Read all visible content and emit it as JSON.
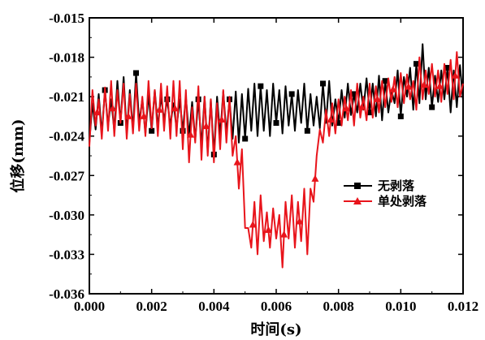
{
  "chart_data": {
    "type": "line",
    "title": "",
    "xlabel": "时间(s)",
    "ylabel": "位移(mm)",
    "xlim": [
      0.0,
      0.012
    ],
    "ylim": [
      -0.036,
      -0.015
    ],
    "xticks": [
      0.0,
      0.002,
      0.004,
      0.006,
      0.008,
      0.01,
      0.012
    ],
    "xtick_labels": [
      "0.000",
      "0.002",
      "0.004",
      "0.006",
      "0.008",
      "0.010",
      "0.012"
    ],
    "yticks": [
      -0.015,
      -0.018,
      -0.021,
      -0.024,
      -0.027,
      -0.03,
      -0.033,
      -0.036
    ],
    "ytick_labels": [
      "-0.015",
      "-0.018",
      "-0.021",
      "-0.024",
      "-0.027",
      "-0.030",
      "-0.033",
      "-0.036"
    ],
    "grid": false,
    "legend_position": "right",
    "series": [
      {
        "name": "无剥落",
        "color": "#000000",
        "marker": "square",
        "x": [
          0.0,
          0.0001,
          0.0002,
          0.0003,
          0.0004,
          0.0005,
          0.0006,
          0.0007,
          0.0008,
          0.0009,
          0.001,
          0.0011,
          0.0012,
          0.0013,
          0.0014,
          0.0015,
          0.0016,
          0.0017,
          0.0018,
          0.0019,
          0.002,
          0.0021,
          0.0022,
          0.0023,
          0.0024,
          0.0025,
          0.0026,
          0.0027,
          0.0028,
          0.0029,
          0.003,
          0.0031,
          0.0032,
          0.0033,
          0.0034,
          0.0035,
          0.0036,
          0.0037,
          0.0038,
          0.0039,
          0.004,
          0.0041,
          0.0042,
          0.0043,
          0.0044,
          0.0045,
          0.0046,
          0.0047,
          0.0048,
          0.0049,
          0.005,
          0.0051,
          0.0052,
          0.0053,
          0.0054,
          0.0055,
          0.0056,
          0.0057,
          0.0058,
          0.0059,
          0.006,
          0.0061,
          0.0062,
          0.0063,
          0.0064,
          0.0065,
          0.0066,
          0.0067,
          0.0068,
          0.0069,
          0.007,
          0.0071,
          0.0072,
          0.0073,
          0.0074,
          0.0075,
          0.0076,
          0.0077,
          0.0078,
          0.0079,
          0.008,
          0.0081,
          0.0082,
          0.0083,
          0.0084,
          0.0085,
          0.0086,
          0.0087,
          0.0088,
          0.0089,
          0.009,
          0.0091,
          0.0092,
          0.0093,
          0.0094,
          0.0095,
          0.0096,
          0.0097,
          0.0098,
          0.0099,
          0.01,
          0.0101,
          0.0102,
          0.0103,
          0.0104,
          0.0105,
          0.0106,
          0.0107,
          0.0108,
          0.0109,
          0.011,
          0.0111,
          0.0112,
          0.0113,
          0.0114,
          0.0115,
          0.0116,
          0.0117,
          0.0118,
          0.0119,
          0.012
        ],
        "y": [
          -0.0245,
          -0.0215,
          -0.0235,
          -0.0208,
          -0.0238,
          -0.0205,
          -0.0232,
          -0.0212,
          -0.0236,
          -0.0198,
          -0.023,
          -0.0195,
          -0.0238,
          -0.0205,
          -0.0235,
          -0.0192,
          -0.023,
          -0.0212,
          -0.0238,
          -0.0208,
          -0.0236,
          -0.0205,
          -0.0233,
          -0.021,
          -0.0228,
          -0.0212,
          -0.0232,
          -0.0215,
          -0.0234,
          -0.0212,
          -0.0236,
          -0.021,
          -0.024,
          -0.0214,
          -0.0243,
          -0.0212,
          -0.0248,
          -0.021,
          -0.0252,
          -0.0212,
          -0.0254,
          -0.021,
          -0.024,
          -0.0206,
          -0.0238,
          -0.0212,
          -0.0242,
          -0.0206,
          -0.0245,
          -0.0208,
          -0.0242,
          -0.0204,
          -0.0236,
          -0.02,
          -0.024,
          -0.0202,
          -0.0236,
          -0.0205,
          -0.024,
          -0.02,
          -0.023,
          -0.0205,
          -0.0238,
          -0.0202,
          -0.0232,
          -0.0208,
          -0.0236,
          -0.0205,
          -0.023,
          -0.02,
          -0.0236,
          -0.0208,
          -0.0232,
          -0.021,
          -0.0234,
          -0.02,
          -0.023,
          -0.0198,
          -0.0232,
          -0.0212,
          -0.023,
          -0.0205,
          -0.0226,
          -0.02,
          -0.0224,
          -0.0208,
          -0.0222,
          -0.02,
          -0.022,
          -0.0196,
          -0.0222,
          -0.02,
          -0.0225,
          -0.0194,
          -0.0228,
          -0.0198,
          -0.0222,
          -0.0205,
          -0.0215,
          -0.019,
          -0.0225,
          -0.0195,
          -0.021,
          -0.0188,
          -0.022,
          -0.0185,
          -0.0215,
          -0.017,
          -0.0212,
          -0.0188,
          -0.0218,
          -0.0194,
          -0.0214,
          -0.019,
          -0.0212,
          -0.0188,
          -0.0222,
          -0.019,
          -0.0218,
          -0.0186,
          -0.0213
        ],
        "marker_x": [
          0.0005,
          0.001,
          0.0015,
          0.002,
          0.0025,
          0.003,
          0.0035,
          0.004,
          0.0045,
          0.005,
          0.0055,
          0.006,
          0.0065,
          0.007,
          0.0075,
          0.008,
          0.0085,
          0.009,
          0.0095,
          0.01,
          0.0105,
          0.011,
          0.0115
        ]
      },
      {
        "name": "单处剥落",
        "color": "#e8141b",
        "marker": "triangle",
        "x": [
          0.0,
          0.0001,
          0.0002,
          0.0003,
          0.0004,
          0.0005,
          0.0006,
          0.0007,
          0.0008,
          0.0009,
          0.001,
          0.0011,
          0.0012,
          0.0013,
          0.0014,
          0.0015,
          0.0016,
          0.0017,
          0.0018,
          0.0019,
          0.002,
          0.0021,
          0.0022,
          0.0023,
          0.0024,
          0.0025,
          0.0026,
          0.0027,
          0.0028,
          0.0029,
          0.003,
          0.0031,
          0.0032,
          0.0033,
          0.0034,
          0.0035,
          0.0036,
          0.0037,
          0.0038,
          0.0039,
          0.004,
          0.0041,
          0.0042,
          0.0043,
          0.0044,
          0.0045,
          0.0046,
          0.0047,
          0.0048,
          0.0049,
          0.005,
          0.0051,
          0.0052,
          0.0053,
          0.0054,
          0.0055,
          0.0056,
          0.0057,
          0.0058,
          0.0059,
          0.006,
          0.0061,
          0.0062,
          0.0063,
          0.0064,
          0.0065,
          0.0066,
          0.0067,
          0.0068,
          0.0069,
          0.007,
          0.0071,
          0.0072,
          0.0073,
          0.0074,
          0.0075,
          0.0076,
          0.0077,
          0.0078,
          0.0079,
          0.008,
          0.0081,
          0.0082,
          0.0083,
          0.0084,
          0.0085,
          0.0086,
          0.0087,
          0.0088,
          0.0089,
          0.009,
          0.0091,
          0.0092,
          0.0093,
          0.0094,
          0.0095,
          0.0096,
          0.0097,
          0.0098,
          0.0099,
          0.01,
          0.0101,
          0.0102,
          0.0103,
          0.0104,
          0.0105,
          0.0106,
          0.0107,
          0.0108,
          0.0109,
          0.011,
          0.0111,
          0.0112,
          0.0113,
          0.0114,
          0.0115,
          0.0116,
          0.0117,
          0.0118,
          0.0119,
          0.012
        ],
        "y": [
          -0.0248,
          -0.0205,
          -0.0232,
          -0.0212,
          -0.0242,
          -0.0203,
          -0.0236,
          -0.0198,
          -0.024,
          -0.0205,
          -0.023,
          -0.02,
          -0.0242,
          -0.0208,
          -0.0238,
          -0.02,
          -0.0236,
          -0.021,
          -0.024,
          -0.0198,
          -0.0234,
          -0.0205,
          -0.024,
          -0.02,
          -0.0236,
          -0.0202,
          -0.0242,
          -0.0198,
          -0.024,
          -0.0198,
          -0.025,
          -0.0205,
          -0.026,
          -0.0218,
          -0.0245,
          -0.0202,
          -0.0258,
          -0.021,
          -0.0255,
          -0.0212,
          -0.026,
          -0.0215,
          -0.025,
          -0.0205,
          -0.0245,
          -0.021,
          -0.0255,
          -0.024,
          -0.028,
          -0.025,
          -0.031,
          -0.031,
          -0.0325,
          -0.029,
          -0.033,
          -0.0285,
          -0.032,
          -0.0298,
          -0.0325,
          -0.0295,
          -0.0318,
          -0.03,
          -0.034,
          -0.029,
          -0.0318,
          -0.0285,
          -0.0325,
          -0.029,
          -0.032,
          -0.028,
          -0.033,
          -0.028,
          -0.029,
          -0.0255,
          -0.0235,
          -0.0245,
          -0.022,
          -0.024,
          -0.0215,
          -0.0238,
          -0.0212,
          -0.0232,
          -0.021,
          -0.0228,
          -0.0205,
          -0.0232,
          -0.02,
          -0.0226,
          -0.021,
          -0.0228,
          -0.02,
          -0.0226,
          -0.0202,
          -0.0222,
          -0.0198,
          -0.0218,
          -0.0196,
          -0.0214,
          -0.0195,
          -0.0218,
          -0.0192,
          -0.0215,
          -0.0193,
          -0.0212,
          -0.0198,
          -0.022,
          -0.018,
          -0.0212,
          -0.019,
          -0.0208,
          -0.0185,
          -0.021,
          -0.019,
          -0.0214,
          -0.0185,
          -0.0208,
          -0.0182,
          -0.0212,
          -0.0176,
          -0.021,
          -0.02
        ],
        "marker_x": [
          0.00025,
          0.00075,
          0.00125,
          0.00175,
          0.00225,
          0.00275,
          0.00325,
          0.00375,
          0.00425,
          0.00475,
          0.00525,
          0.00575,
          0.00625,
          0.00675,
          0.00725,
          0.00775,
          0.00825,
          0.00875,
          0.00925,
          0.00975,
          0.01025,
          0.01075,
          0.01125,
          0.01175
        ]
      }
    ]
  }
}
